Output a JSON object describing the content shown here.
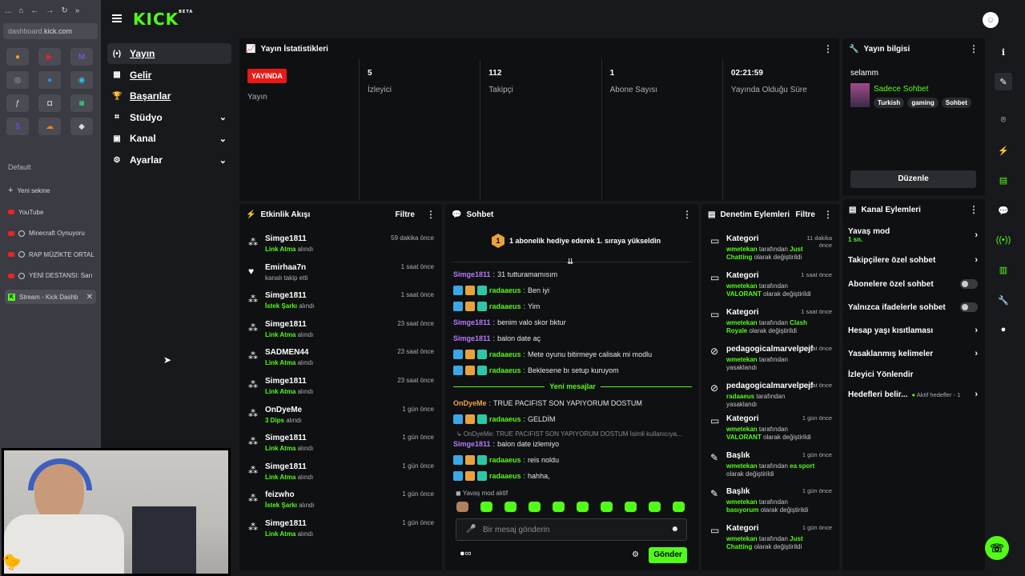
{
  "browser": {
    "nav_icons": [
      "...",
      "⌂",
      "←",
      "→",
      "↻",
      "»"
    ],
    "url_host": "dashboard.",
    "url_rest": "kick.com",
    "section": "Default",
    "new_tab": "Yeni sekme",
    "tabs": [
      {
        "label": "YouTube",
        "type": "yt"
      },
      {
        "label": "Minecraft Oynuyoru",
        "type": "glyt"
      },
      {
        "label": "RAP MÜZİKTE ORTAL",
        "type": "glyt"
      },
      {
        "label": "YENİ DESTANSI: Sarı",
        "type": "glyt"
      },
      {
        "label": "Stream - Kick Dashb",
        "type": "kick"
      }
    ],
    "tiles": [
      "●",
      "▶",
      "M",
      "◎",
      "●",
      "◉",
      "ƒ",
      "◘",
      "◙",
      "$",
      "☁",
      "◆"
    ]
  },
  "header": {
    "logo": "KICK",
    "beta": "BETA"
  },
  "nav": [
    {
      "label": "Yayın",
      "icon": "(•)",
      "active": true
    },
    {
      "label": "Gelir",
      "icon": "▦"
    },
    {
      "label": "Başarılar",
      "icon": "🏆"
    },
    {
      "label": "Stüdyo",
      "icon": "⌗",
      "chev": "⌄"
    },
    {
      "label": "Kanal",
      "icon": "▣",
      "chev": "⌄"
    },
    {
      "label": "Ayarlar",
      "icon": "⚙",
      "chev": "⌄"
    }
  ],
  "stats": {
    "title": "Yayın İstatistikleri",
    "live_badge": "YAYINDA",
    "live_label": "Yayın",
    "items": [
      {
        "value": "5",
        "label": "İzleyici"
      },
      {
        "value": "112",
        "label": "Takipçi"
      },
      {
        "value": "1",
        "label": "Abone Sayısı"
      },
      {
        "value": "02:21:59",
        "label": "Yayında Olduğu Süre"
      }
    ]
  },
  "stream_info": {
    "title": "Yayın bilgisi",
    "stream_title": "selamm",
    "category": "Sadece Sohbet",
    "tags": [
      "Turkish",
      "gaming",
      "Sohbet"
    ],
    "edit": "Düzenle"
  },
  "activity": {
    "title": "Etkinlik Akışı",
    "filter": "Filtre",
    "items": [
      {
        "name": "Simge1811",
        "pre": "",
        "hl": "Link Atma",
        "post": " alındı",
        "time": "59 dakika önce",
        "icon": "gift"
      },
      {
        "name": "Emirhaa7n",
        "pre": "kanalı takip etti",
        "hl": "",
        "post": "",
        "time": "1 saat önce",
        "icon": "heart"
      },
      {
        "name": "Simge1811",
        "pre": "",
        "hl": "İstek Şarkı",
        "post": " alındı",
        "time": "1 saat önce",
        "icon": "gift"
      },
      {
        "name": "Simge1811",
        "pre": "",
        "hl": "Link Atma",
        "post": " alındı",
        "time": "23 saat önce",
        "icon": "gift"
      },
      {
        "name": "SADMEN44",
        "pre": "",
        "hl": "Link Atma",
        "post": " alındı",
        "time": "23 saat önce",
        "icon": "gift"
      },
      {
        "name": "Simge1811",
        "pre": "",
        "hl": "Link Atma",
        "post": " alındı",
        "time": "23 saat önce",
        "icon": "gift"
      },
      {
        "name": "OnDyeMe",
        "pre": "",
        "hl": "3 Dips",
        "post": " alındı",
        "time": "1 gün önce",
        "icon": "gift"
      },
      {
        "name": "Simge1811",
        "pre": "",
        "hl": "Link Atma",
        "post": " alındı",
        "time": "1 gün önce",
        "icon": "gift"
      },
      {
        "name": "Simge1811",
        "pre": "",
        "hl": "Link Atma",
        "post": " alındı",
        "time": "1 gün önce",
        "icon": "gift"
      },
      {
        "name": "feizwho",
        "pre": "",
        "hl": "İstek Şarkı",
        "post": " alındı",
        "time": "1 gün önce",
        "icon": "gift"
      },
      {
        "name": "Simge1811",
        "pre": "",
        "hl": "Link Atma",
        "post": " alındı",
        "time": "1 gün önce",
        "icon": "gift"
      }
    ]
  },
  "chat": {
    "title": "Sohbet",
    "pinned_num": "1",
    "pinned": "1 abonelik hediye ederek 1. sıraya yükseldin",
    "new_messages": "Yeni mesajlar",
    "messages": [
      {
        "user": "Simge1811",
        "color": "pu",
        "badges": false,
        "text": "31 tutturamamısım"
      },
      {
        "user": "radaaeus",
        "color": "gr",
        "badges": true,
        "text": "Ben iyi"
      },
      {
        "user": "radaaeus",
        "color": "gr",
        "badges": true,
        "text": "Yim"
      },
      {
        "user": "Simge1811",
        "color": "pu",
        "badges": false,
        "text": "benim valo skor bktur"
      },
      {
        "user": "Simge1811",
        "color": "pu",
        "badges": false,
        "text": "balon date aç"
      },
      {
        "user": "radaaeus",
        "color": "gr",
        "badges": true,
        "text": "Mete oyunu bitirmeye calisak mi modlu"
      },
      {
        "user": "radaaeus",
        "color": "gr",
        "badges": true,
        "text": "Beklesene bı setup kuruyom"
      },
      {
        "user": "OnDyeMe",
        "color": "or",
        "badges": false,
        "text": "TRUE PACIFIST SON YAPIYORUM DOSTUM"
      },
      {
        "user": "radaaeus",
        "color": "gr",
        "badges": true,
        "text": "GELDİM"
      },
      {
        "user": "Simge1811",
        "color": "pu",
        "badges": false,
        "text": "balon date izlemiyo"
      },
      {
        "user": "radaaeus",
        "color": "gr",
        "badges": true,
        "text": "reis noldu"
      },
      {
        "user": "radaaeus",
        "color": "gr",
        "badges": true,
        "text": "hahha,"
      }
    ],
    "reply_ref": "↳ OnDyeMe: TRUE PACIFIST SON YAPIYORUM DOSTUM İsimli kullanıcıya...",
    "slow_mode": "Yavaş mod aktif",
    "placeholder": "Bir mesaj gönderin",
    "send": "Gönder",
    "footer_icon": "∞"
  },
  "mod": {
    "title": "Denetim Eylemleri",
    "filter": "Filtre",
    "items": [
      {
        "icon": "cat",
        "name": "Kategori",
        "time": "11 dakika önce",
        "by": "wmetekan",
        "mid": " tarafından ",
        "val": "Just Chatting",
        "end": " olarak değiştirildi"
      },
      {
        "icon": "cat",
        "name": "Kategori",
        "time": "1 saat önce",
        "by": "wmetekan",
        "mid": " tarafından ",
        "val": "VALORANT",
        "end": " olarak değiştirildi"
      },
      {
        "icon": "cat",
        "name": "Kategori",
        "time": "1 saat önce",
        "by": "wmetekan",
        "mid": " tarafından ",
        "val": "Clash Royale",
        "end": " olarak değiştirildi"
      },
      {
        "icon": "ban",
        "name": "pedagogicalmarvelpejf",
        "time": "2 saat önce",
        "by": "wmetekan",
        "mid": " tarafından yasaklandı",
        "val": "",
        "end": ""
      },
      {
        "icon": "ban",
        "name": "pedagogicalmarvelpejf",
        "time": "2 saat önce",
        "by": "radaaeus",
        "mid": " tarafından yasaklandı",
        "val": "",
        "end": ""
      },
      {
        "icon": "cat",
        "name": "Kategori",
        "time": "1 gün önce",
        "by": "wmetekan",
        "mid": " tarafından ",
        "val": "VALORANT",
        "end": " olarak değiştirildi"
      },
      {
        "icon": "title",
        "name": "Başlık",
        "time": "1 gün önce",
        "by": "wmetekan",
        "mid": " tarafından ",
        "val": "ea sport",
        "end": " olarak değiştirildi"
      },
      {
        "icon": "title",
        "name": "Başlık",
        "time": "1 gün önce",
        "by": "wmetekan",
        "mid": " tarafından ",
        "val": "basıyorum",
        "end": " olarak değiştirildi"
      },
      {
        "icon": "cat",
        "name": "Kategori",
        "time": "1 gün önce",
        "by": "wmetekan",
        "mid": " tarafından ",
        "val": "Just Chatting",
        "end": " olarak değiştirildi"
      }
    ]
  },
  "channel": {
    "title": "Kanal Eylemleri",
    "slow": "Yavaş mod",
    "slow_val": "1 sn.",
    "followers": "Takipçilere özel sohbet",
    "subs": "Abonelere özel sohbet",
    "emotes": "Yalnızca ifadelerle sohbet",
    "age": "Hesap yaşı kısıtlaması",
    "banned": "Yasaklanmış kelimeler",
    "host": "İzleyici Yönlendir",
    "goals": "Hedefleri belir...",
    "goals_active": "Aktif hedefler - 1"
  },
  "rail": [
    "ℹ",
    "✎",
    "⌾",
    "⚡",
    "▤",
    "💬",
    "((•))",
    "▥",
    "🔧",
    "●"
  ]
}
